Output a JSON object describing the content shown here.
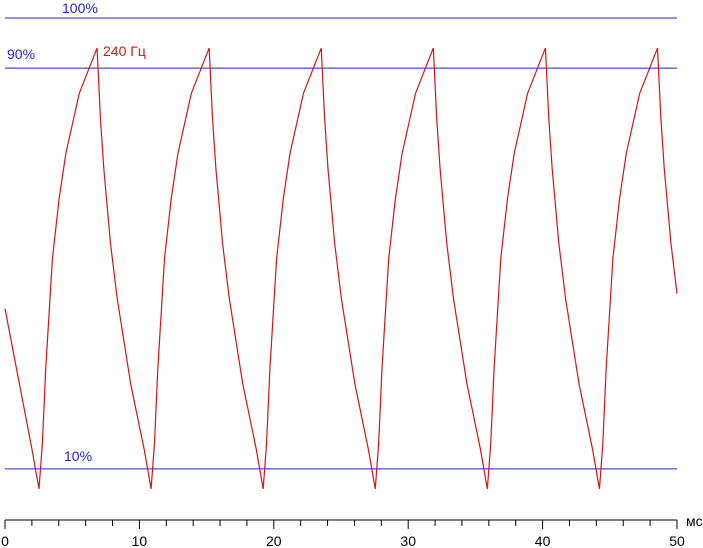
{
  "chart_data": {
    "type": "line",
    "annotation": "240 Гц",
    "x_unit": "мс",
    "xlim": [
      0,
      50
    ],
    "ylim": [
      0,
      100
    ],
    "xticks": [
      0,
      10,
      20,
      30,
      40,
      50
    ],
    "xticks_minor": [
      2,
      4,
      6,
      8,
      12,
      14,
      16,
      18,
      22,
      24,
      26,
      28,
      32,
      34,
      36,
      38,
      42,
      44,
      46,
      48
    ],
    "reference_lines": [
      {
        "value": 100,
        "label": "100%"
      },
      {
        "value": 90,
        "label": "90%"
      },
      {
        "value": 10,
        "label": "10%"
      }
    ],
    "reference_color": "#2222cc",
    "series": [
      {
        "color": "#dd1111",
        "x": [
          0,
          0.5,
          1.0,
          1.5,
          2.0,
          2.53,
          2.78,
          3.03,
          3.53,
          4.03,
          4.53,
          5.53,
          6.85,
          7.1,
          7.35,
          7.85,
          8.35,
          9.35,
          10.35,
          10.87,
          11.12,
          11.37,
          11.87,
          12.37,
          12.87,
          13.87,
          15.19,
          15.44,
          15.69,
          16.19,
          16.69,
          17.69,
          18.69,
          19.21,
          19.46,
          19.71,
          20.21,
          20.71,
          21.21,
          22.21,
          23.53,
          23.78,
          24.03,
          24.53,
          25.03,
          26.03,
          27.03,
          27.55,
          27.8,
          28.05,
          28.55,
          29.05,
          29.55,
          30.55,
          31.87,
          32.12,
          32.37,
          32.87,
          33.37,
          34.37,
          35.37,
          35.89,
          36.14,
          36.39,
          36.89,
          37.39,
          37.89,
          38.89,
          40.21,
          40.46,
          40.71,
          41.21,
          41.71,
          42.71,
          43.71,
          44.23,
          44.48,
          44.73,
          45.23,
          45.73,
          46.23,
          47.23,
          48.55,
          48.8,
          49.05,
          49.55,
          50
        ],
        "values": [
          42,
          35,
          28,
          21,
          14,
          6,
          15,
          30,
          52,
          64,
          73,
          85,
          94,
          80,
          70,
          55,
          44,
          27,
          14,
          6,
          15,
          30,
          52,
          64,
          73,
          85,
          94,
          80,
          70,
          55,
          44,
          27,
          14,
          6,
          15,
          30,
          52,
          64,
          73,
          85,
          94,
          80,
          70,
          55,
          44,
          27,
          14,
          6,
          15,
          30,
          52,
          64,
          73,
          85,
          94,
          80,
          70,
          55,
          44,
          27,
          14,
          6,
          15,
          30,
          52,
          64,
          73,
          85,
          94,
          80,
          70,
          55,
          44,
          27,
          14,
          6,
          15,
          30,
          52,
          64,
          73,
          85,
          94,
          80,
          70,
          55,
          45
        ]
      }
    ]
  }
}
